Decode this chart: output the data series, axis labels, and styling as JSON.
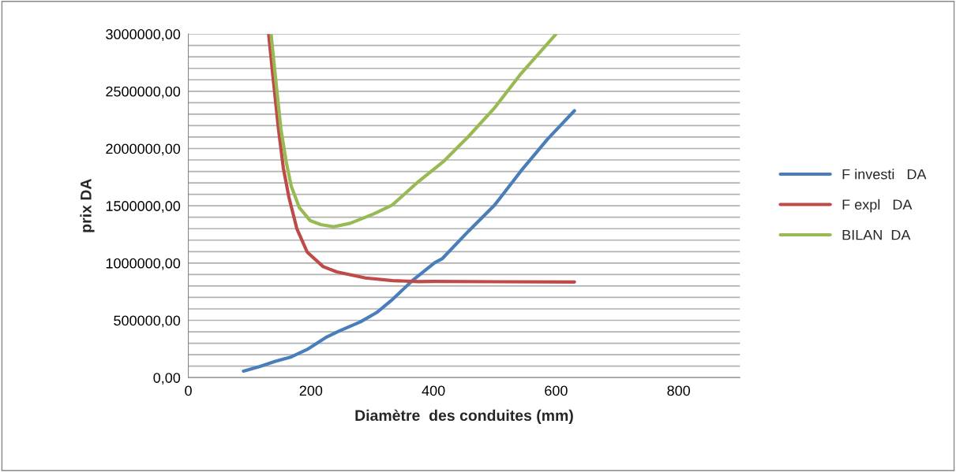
{
  "chart_data": {
    "type": "line",
    "xlabel": "Diamètre  des conduites (mm)",
    "ylabel": "prix DA",
    "xlim": [
      0,
      900
    ],
    "xticks": [
      0,
      200,
      400,
      600,
      800
    ],
    "ylim": [
      0,
      3000000
    ],
    "yticks": [
      {
        "value": 0,
        "label": "0,00"
      },
      {
        "value": 100000,
        "label": null
      },
      {
        "value": 200000,
        "label": null
      },
      {
        "value": 300000,
        "label": null
      },
      {
        "value": 400000,
        "label": null
      },
      {
        "value": 500000,
        "label": "500000,00"
      },
      {
        "value": 600000,
        "label": null
      },
      {
        "value": 700000,
        "label": null
      },
      {
        "value": 800000,
        "label": null
      },
      {
        "value": 900000,
        "label": null
      },
      {
        "value": 1000000,
        "label": "1000000,00"
      },
      {
        "value": 1100000,
        "label": null
      },
      {
        "value": 1200000,
        "label": null
      },
      {
        "value": 1300000,
        "label": null
      },
      {
        "value": 1400000,
        "label": null
      },
      {
        "value": 1500000,
        "label": "1500000,00"
      },
      {
        "value": 1600000,
        "label": null
      },
      {
        "value": 1700000,
        "label": null
      },
      {
        "value": 1800000,
        "label": null
      },
      {
        "value": 1900000,
        "label": null
      },
      {
        "value": 2000000,
        "label": "2000000,00"
      },
      {
        "value": 2100000,
        "label": null
      },
      {
        "value": 2200000,
        "label": null
      },
      {
        "value": 2300000,
        "label": null
      },
      {
        "value": 2400000,
        "label": null
      },
      {
        "value": 2500000,
        "label": "2500000,00"
      },
      {
        "value": 2600000,
        "label": null
      },
      {
        "value": 2700000,
        "label": null
      },
      {
        "value": 2800000,
        "label": null
      },
      {
        "value": 2900000,
        "label": null
      },
      {
        "value": 3000000,
        "label": "3000000,00"
      }
    ],
    "grid": "y",
    "legend": "right",
    "marker": "none",
    "line_style": "solid",
    "series": [
      {
        "name": "F investi   DA",
        "color": "#4a7ebb",
        "x": [
          90,
          116,
          142,
          168,
          194,
          224,
          246,
          281,
          307,
          333,
          367,
          402,
          414,
          457,
          500,
          543,
          586,
          630
        ],
        "values": [
          57000,
          96000,
          142000,
          181000,
          246000,
          349000,
          406000,
          487000,
          567000,
          682000,
          854000,
          1003000,
          1037000,
          1278000,
          1508000,
          1806000,
          2082000,
          2330000
        ]
      },
      {
        "name": "F expl   DA",
        "color": "#be4b48",
        "x": [
          131,
          138,
          147,
          155,
          164,
          177,
          194,
          220,
          242,
          289,
          333,
          376,
          400,
          500,
          630
        ],
        "values": [
          3000000,
          2633000,
          2173000,
          1829000,
          1577000,
          1301000,
          1095000,
          969000,
          923000,
          870000,
          847000,
          838000,
          840000,
          837000,
          835000
        ]
      },
      {
        "name": "BILAN  DA",
        "color": "#98b954",
        "x": [
          135,
          142,
          151,
          160,
          168,
          181,
          199,
          216,
          237,
          264,
          302,
          333,
          376,
          416,
          457,
          500,
          543,
          600
        ],
        "values": [
          3000000,
          2633000,
          2173000,
          1875000,
          1669000,
          1485000,
          1370000,
          1336000,
          1317000,
          1347000,
          1428000,
          1508000,
          1714000,
          1885000,
          2105000,
          2357000,
          2655000,
          3000000
        ]
      }
    ]
  }
}
